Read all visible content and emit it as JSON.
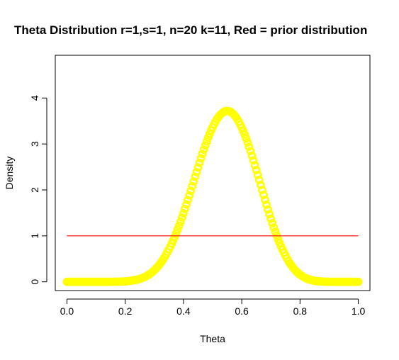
{
  "chart_data": {
    "type": "line",
    "title": "Theta Distribution r=1,s=1, n=20 k=11, Red = prior distribution",
    "xlabel": "Theta",
    "ylabel": "Density",
    "xlim": [
      -0.04,
      1.04
    ],
    "ylim": [
      -0.19,
      4.93
    ],
    "x_ticks": [
      0.0,
      0.2,
      0.4,
      0.6,
      0.8,
      1.0
    ],
    "x_tick_labels": [
      "0.0",
      "0.2",
      "0.4",
      "0.6",
      "0.8",
      "1.0"
    ],
    "y_ticks": [
      0,
      1,
      2,
      3,
      4
    ],
    "y_tick_labels": [
      "0",
      "1",
      "2",
      "3",
      "4"
    ],
    "grid": false,
    "series": [
      {
        "role": "posterior",
        "color": "#ffff00",
        "style": "points",
        "distribution": "beta",
        "alpha": 12,
        "beta": 10,
        "x_range": [
          0,
          1
        ],
        "n_points": 201
      },
      {
        "role": "prior",
        "color": "#ff0000",
        "style": "line",
        "distribution": "uniform",
        "x": [
          0,
          1
        ],
        "y": [
          1,
          1
        ]
      }
    ]
  }
}
